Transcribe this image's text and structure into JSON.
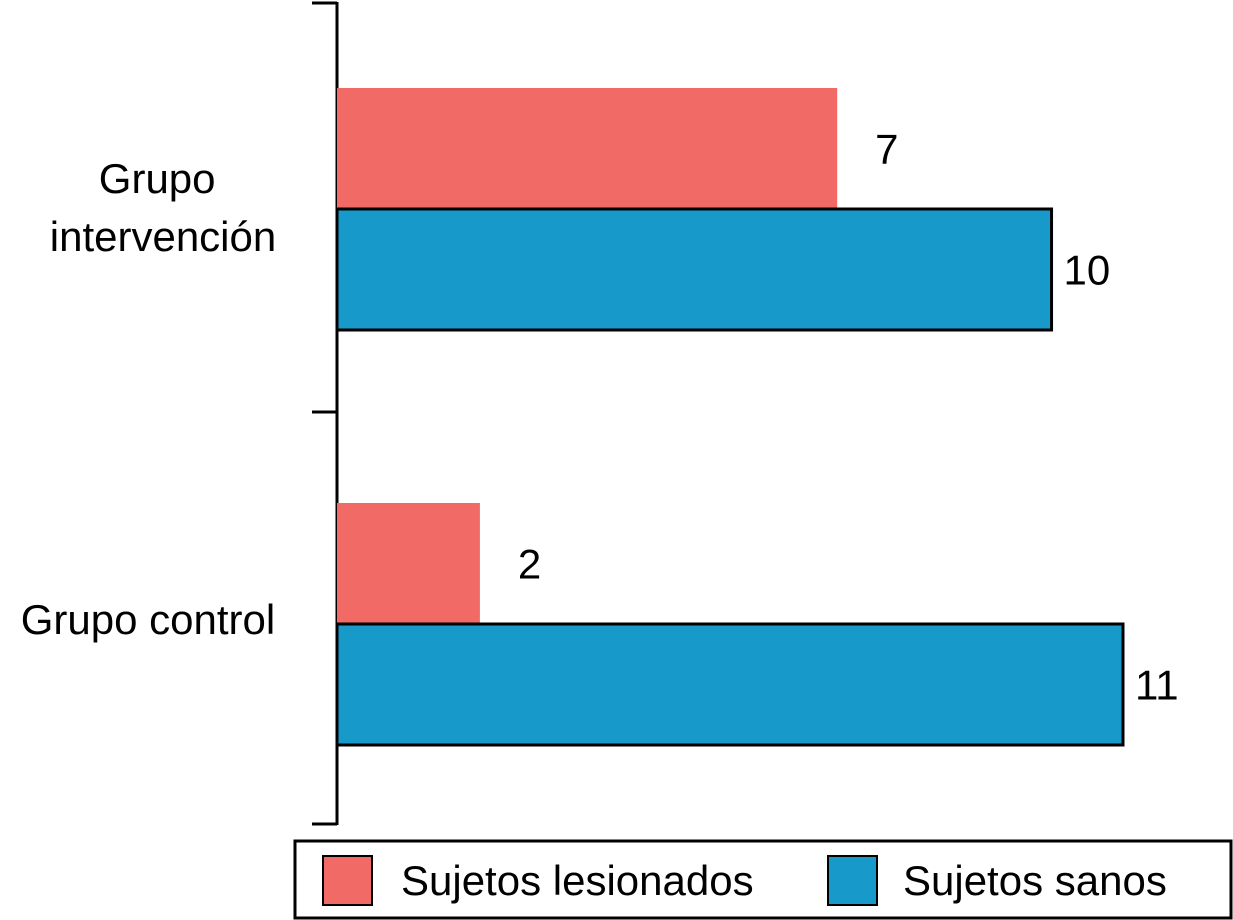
{
  "chart_data": {
    "type": "bar",
    "orientation": "horizontal",
    "categories": [
      "Grupo intervención",
      "Grupo control"
    ],
    "category_lines": [
      [
        "Grupo",
        "intervención"
      ],
      [
        "Grupo control"
      ]
    ],
    "series": [
      {
        "name": "Sujetos lesionados",
        "values": [
          7,
          2
        ],
        "color": "#f26a65"
      },
      {
        "name": "Sujetos sanos",
        "values": [
          10,
          11
        ],
        "color": "#1799c9"
      }
    ],
    "title": "",
    "xlabel": "",
    "ylabel": "",
    "xlim": [
      0,
      11
    ],
    "grid": false,
    "legend_position": "bottom"
  }
}
